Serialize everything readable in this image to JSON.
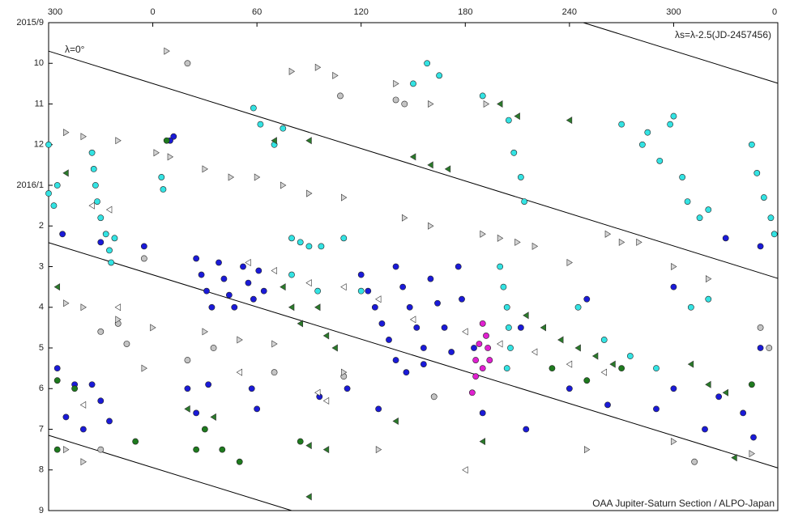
{
  "chart_data": {
    "type": "scatter",
    "xlim": [
      -60,
      360
    ],
    "xticks": [
      {
        "value": -60,
        "label": "300"
      },
      0,
      60,
      120,
      180,
      240,
      300,
      {
        "value": 360,
        "label": "0"
      }
    ],
    "ylim": [
      12,
      0
    ],
    "yticks": [
      {
        "value": 0,
        "label": "2015/9"
      },
      {
        "value": 1,
        "label": "10"
      },
      {
        "value": 2,
        "label": "11"
      },
      {
        "value": 3,
        "label": "12"
      },
      {
        "value": 4,
        "label": "2016/1"
      },
      {
        "value": 5,
        "label": "2"
      },
      {
        "value": 6,
        "label": "3"
      },
      {
        "value": 7,
        "label": "4"
      },
      {
        "value": 8,
        "label": "5"
      },
      {
        "value": 9,
        "label": "6"
      },
      {
        "value": 10,
        "label": "7"
      },
      {
        "value": 11,
        "label": "8"
      },
      {
        "value": 12,
        "label": "9"
      }
    ],
    "annotations": [
      "λ=0°",
      "λs=λ-2.5(JD-2457456)",
      "OAA Jupiter-Saturn Section / ALPO-Japan"
    ],
    "reference_lines": [
      {
        "x": [
          -60,
          360
        ],
        "y": [
          0.7,
          6.29
        ]
      },
      {
        "x": [
          248,
          360
        ],
        "y": [
          0,
          1.49
        ]
      },
      {
        "x": [
          -60,
          360
        ],
        "y": [
          5.41,
          10.95
        ]
      },
      {
        "x": [
          -60,
          80
        ],
        "y": [
          10.15,
          12
        ]
      }
    ],
    "series": [
      {
        "marker": "circle",
        "color": "#1a1ad8",
        "x": [
          25,
          28,
          31,
          34,
          38,
          41,
          44,
          47,
          52,
          55,
          58,
          61,
          64,
          120,
          124,
          128,
          132,
          136,
          140,
          144,
          148,
          152,
          156,
          160,
          164,
          168,
          172,
          176,
          178,
          140,
          146,
          156,
          -55,
          -45,
          -35,
          -30,
          -50,
          -40,
          -25,
          20,
          25,
          32,
          57,
          60,
          96,
          112,
          130,
          190,
          215,
          240,
          262,
          290,
          300,
          318,
          326,
          340,
          346,
          -30,
          12,
          10,
          330,
          350,
          -5,
          -52,
          185,
          212,
          250,
          300,
          350
        ],
        "y": [
          5.8,
          6.2,
          6.6,
          7.0,
          5.9,
          6.3,
          6.7,
          7.0,
          6.0,
          6.4,
          6.8,
          6.1,
          6.6,
          6.2,
          6.6,
          7.0,
          7.4,
          7.8,
          6.0,
          6.5,
          7.0,
          7.5,
          8.0,
          6.3,
          6.9,
          7.5,
          8.1,
          6.0,
          6.8,
          8.3,
          8.6,
          8.4,
          8.5,
          8.9,
          8.9,
          9.3,
          9.7,
          10.0,
          9.8,
          9.0,
          9.6,
          8.9,
          9.0,
          9.5,
          9.2,
          9.0,
          9.5,
          9.6,
          10.0,
          9.0,
          9.4,
          9.5,
          9.0,
          10.0,
          9.2,
          9.6,
          10.2,
          5.4,
          2.8,
          2.9,
          5.3,
          5.5,
          5.5,
          5.2,
          8.0,
          7.5,
          6.8,
          6.5,
          8.0
        ]
      },
      {
        "marker": "circle",
        "color": "#33e3e3",
        "x": [
          -35,
          -34,
          -33,
          -32,
          -30,
          -27,
          -25,
          -24,
          -22,
          -60,
          -60,
          -57,
          -55,
          5,
          6,
          58,
          62,
          70,
          75,
          80,
          85,
          90,
          97,
          110,
          150,
          158,
          165,
          190,
          205,
          208,
          212,
          214,
          270,
          285,
          298,
          300,
          282,
          292,
          305,
          308,
          315,
          320,
          345,
          348,
          352,
          356,
          358,
          200,
          202,
          204,
          205,
          206,
          204,
          245,
          260,
          275,
          290,
          310,
          320,
          80,
          95,
          120
        ],
        "y": [
          3.2,
          3.6,
          4.0,
          4.4,
          4.8,
          5.2,
          5.6,
          5.9,
          5.3,
          3.0,
          4.2,
          4.5,
          4.0,
          3.8,
          4.1,
          2.1,
          2.5,
          3.0,
          2.6,
          5.3,
          5.4,
          5.5,
          5.5,
          5.3,
          1.5,
          1.0,
          1.3,
          1.8,
          2.4,
          3.2,
          3.8,
          4.4,
          2.5,
          2.7,
          2.5,
          2.3,
          3.0,
          3.4,
          3.8,
          4.4,
          4.8,
          4.6,
          3.0,
          3.7,
          4.3,
          4.8,
          5.2,
          6.0,
          6.5,
          7.0,
          7.5,
          8.0,
          8.5,
          7.0,
          7.8,
          8.2,
          8.5,
          7.0,
          6.8,
          6.2,
          6.6,
          6.6
        ]
      },
      {
        "marker": "circle",
        "color": "#1e7a1e",
        "x": [
          8,
          -55,
          -45,
          30,
          40,
          50,
          -10,
          85,
          25,
          230,
          250,
          270,
          345,
          -55
        ],
        "y": [
          2.9,
          8.8,
          9.0,
          10.0,
          10.5,
          10.8,
          10.3,
          10.3,
          10.5,
          8.5,
          8.8,
          8.5,
          8.9,
          10.5
        ]
      },
      {
        "marker": "circle",
        "color": "#c4c4c4",
        "x": [
          20,
          108,
          140,
          145,
          -5,
          -30,
          -20,
          -15,
          35,
          70,
          110,
          162,
          -30,
          312,
          350,
          355,
          20
        ],
        "y": [
          1.0,
          1.8,
          1.9,
          2.0,
          5.8,
          7.6,
          7.4,
          7.9,
          8.0,
          8.6,
          8.7,
          9.2,
          10.5,
          10.8,
          7.5,
          8.0,
          8.3
        ]
      },
      {
        "marker": "circle",
        "color": "#e020d0",
        "x": [
          190,
          192,
          193,
          194,
          190,
          186,
          184,
          186,
          188
        ],
        "y": [
          7.4,
          7.7,
          8.0,
          8.3,
          8.5,
          8.7,
          9.1,
          8.3,
          7.9
        ]
      },
      {
        "marker": "triangle-right",
        "color": "#d4d4d4",
        "x": [
          8,
          80,
          95,
          105,
          140,
          160,
          192,
          -50,
          -40,
          -20,
          2,
          10,
          30,
          45,
          60,
          75,
          90,
          110,
          145,
          160,
          190,
          200,
          210,
          220,
          240,
          262,
          270,
          280,
          300,
          320,
          -50,
          -40,
          -20,
          0,
          30,
          50,
          70,
          -5,
          110,
          -50,
          -40,
          130,
          250,
          300,
          345
        ],
        "y": [
          0.7,
          1.2,
          1.1,
          1.3,
          1.5,
          2.0,
          2.0,
          2.7,
          2.8,
          2.9,
          3.2,
          3.3,
          3.6,
          3.8,
          3.8,
          4.0,
          4.2,
          4.3,
          4.8,
          5.0,
          5.2,
          5.3,
          5.4,
          5.5,
          5.9,
          5.2,
          5.4,
          5.4,
          6.0,
          6.3,
          6.9,
          7.0,
          7.3,
          7.5,
          7.6,
          7.8,
          7.9,
          8.5,
          8.6,
          10.5,
          10.8,
          10.5,
          10.5,
          10.3,
          10.6
        ]
      },
      {
        "marker": "triangle-left",
        "color": "#2a7a2a",
        "x": [
          70,
          90,
          150,
          160,
          170,
          200,
          210,
          240,
          75,
          80,
          85,
          95,
          100,
          105,
          215,
          225,
          235,
          245,
          255,
          265,
          310,
          320,
          330,
          20,
          35,
          90,
          100,
          140,
          190,
          335,
          -50,
          -55,
          90
        ],
        "y": [
          2.9,
          2.9,
          3.3,
          3.5,
          3.6,
          2.0,
          2.3,
          2.4,
          6.5,
          7.0,
          7.4,
          7.0,
          7.7,
          8.0,
          7.2,
          7.5,
          7.8,
          8.0,
          8.2,
          8.4,
          8.4,
          8.9,
          9.1,
          9.5,
          9.7,
          10.4,
          10.5,
          9.8,
          10.3,
          10.7,
          3.7,
          6.5,
          11.66
        ]
      },
      {
        "marker": "triangle-left",
        "color": "#ffffff",
        "x": [
          -35,
          -25,
          55,
          70,
          90,
          110,
          130,
          150,
          180,
          200,
          220,
          240,
          260,
          -20,
          95,
          100,
          -40,
          50,
          180
        ],
        "y": [
          4.5,
          4.6,
          5.9,
          6.1,
          6.4,
          6.5,
          6.8,
          7.3,
          7.6,
          7.9,
          8.1,
          8.4,
          8.6,
          7.0,
          9.1,
          9.3,
          9.4,
          8.6,
          11.0
        ]
      }
    ]
  }
}
